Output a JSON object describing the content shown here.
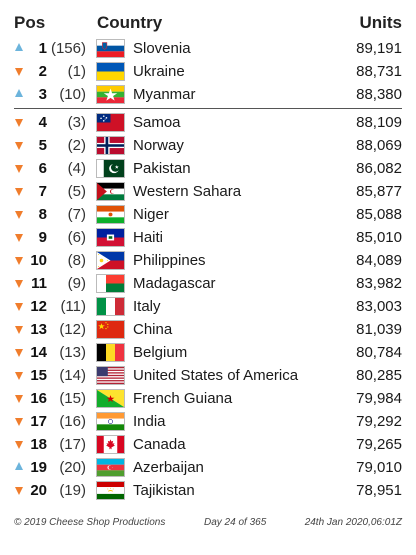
{
  "header": {
    "pos": "Pos",
    "country": "Country",
    "units": "Units"
  },
  "rows": [
    {
      "pos": "1",
      "prev": "(156)",
      "trend": "up",
      "country": "Slovenia",
      "flag": "slovenia-flag-icon",
      "units": "89,191"
    },
    {
      "pos": "2",
      "prev": "(1)",
      "trend": "down",
      "country": "Ukraine",
      "flag": "ukraine-flag-icon",
      "units": "88,731"
    },
    {
      "pos": "3",
      "prev": "(10)",
      "trend": "up",
      "country": "Myanmar",
      "flag": "myanmar-flag-icon",
      "units": "88,380"
    },
    {
      "pos": "4",
      "prev": "(3)",
      "trend": "down",
      "country": "Samoa",
      "flag": "samoa-flag-icon",
      "units": "88,109"
    },
    {
      "pos": "5",
      "prev": "(2)",
      "trend": "down",
      "country": "Norway",
      "flag": "norway-flag-icon",
      "units": "88,069"
    },
    {
      "pos": "6",
      "prev": "(4)",
      "trend": "down",
      "country": "Pakistan",
      "flag": "pakistan-flag-icon",
      "units": "86,082"
    },
    {
      "pos": "7",
      "prev": "(5)",
      "trend": "down",
      "country": "Western Sahara",
      "flag": "western-sahara-flag-icon",
      "units": "85,877"
    },
    {
      "pos": "8",
      "prev": "(7)",
      "trend": "down",
      "country": "Niger",
      "flag": "niger-flag-icon",
      "units": "85,088"
    },
    {
      "pos": "9",
      "prev": "(6)",
      "trend": "down",
      "country": "Haiti",
      "flag": "haiti-flag-icon",
      "units": "85,010"
    },
    {
      "pos": "10",
      "prev": "(8)",
      "trend": "down",
      "country": "Philippines",
      "flag": "philippines-flag-icon",
      "units": "84,089"
    },
    {
      "pos": "11",
      "prev": "(9)",
      "trend": "down",
      "country": "Madagascar",
      "flag": "madagascar-flag-icon",
      "units": "83,982"
    },
    {
      "pos": "12",
      "prev": "(11)",
      "trend": "down",
      "country": "Italy",
      "flag": "italy-flag-icon",
      "units": "83,003"
    },
    {
      "pos": "13",
      "prev": "(12)",
      "trend": "down",
      "country": "China",
      "flag": "china-flag-icon",
      "units": "81,039"
    },
    {
      "pos": "14",
      "prev": "(13)",
      "trend": "down",
      "country": "Belgium",
      "flag": "belgium-flag-icon",
      "units": "80,784"
    },
    {
      "pos": "15",
      "prev": "(14)",
      "trend": "down",
      "country": "United States of America",
      "flag": "usa-flag-icon",
      "units": "80,285"
    },
    {
      "pos": "16",
      "prev": "(15)",
      "trend": "down",
      "country": "French Guiana",
      "flag": "french-guiana-flag-icon",
      "units": "79,984"
    },
    {
      "pos": "17",
      "prev": "(16)",
      "trend": "down",
      "country": "India",
      "flag": "india-flag-icon",
      "units": "79,292"
    },
    {
      "pos": "18",
      "prev": "(17)",
      "trend": "down",
      "country": "Canada",
      "flag": "canada-flag-icon",
      "units": "79,265"
    },
    {
      "pos": "19",
      "prev": "(20)",
      "trend": "up",
      "country": "Azerbaijan",
      "flag": "azerbaijan-flag-icon",
      "units": "79,010"
    },
    {
      "pos": "20",
      "prev": "(19)",
      "trend": "down",
      "country": "Tajikistan",
      "flag": "tajikistan-flag-icon",
      "units": "78,951"
    }
  ],
  "colors": {
    "up_arrow": "#6cb4dc",
    "down_arrow": "#f07d2c"
  },
  "footer": {
    "copyright": "© 2019 Cheese Shop Productions",
    "day": "Day 24 of 365",
    "timestamp": "24th Jan 2020,06:01Z"
  }
}
